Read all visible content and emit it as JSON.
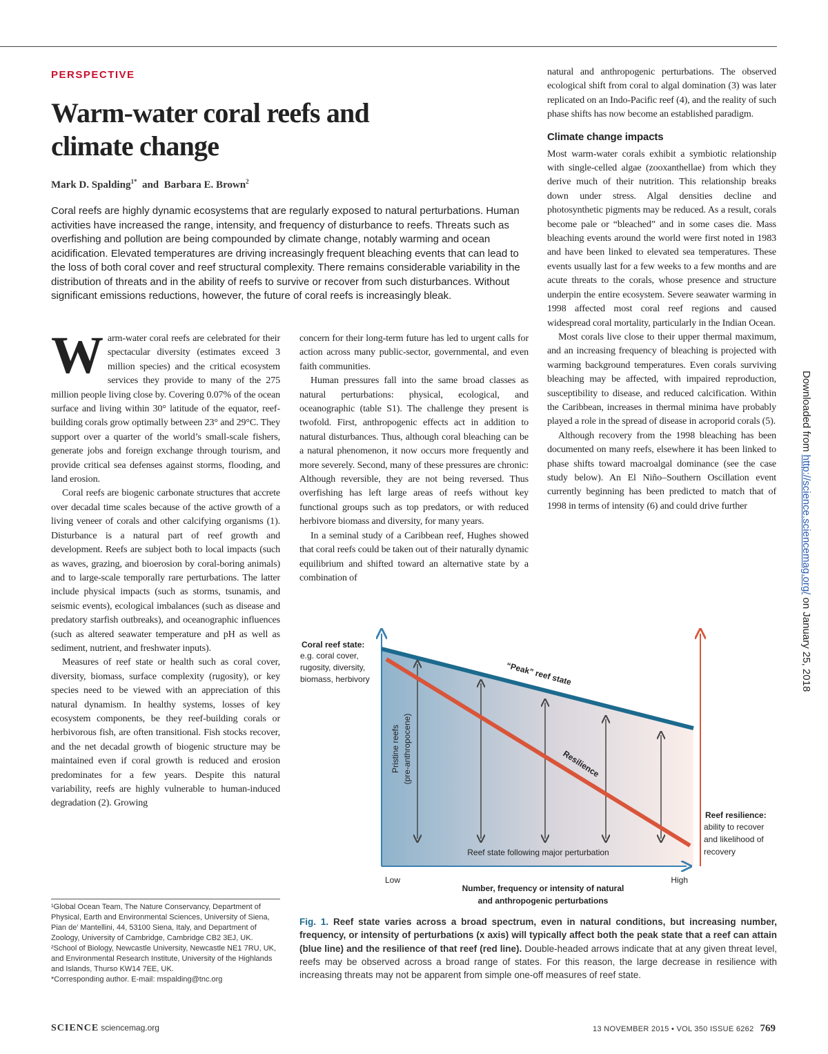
{
  "header": {
    "section": "PERSPECTIVE",
    "title": "Warm-water coral reefs and climate change",
    "authors": [
      {
        "name": "Mark D. Spalding",
        "affil": "1*"
      },
      {
        "name": "Barbara E. Brown",
        "affil": "2"
      }
    ],
    "author_joiner": "and"
  },
  "abstract": "Coral reefs are highly dynamic ecosystems that are regularly exposed to natural perturbations. Human activities have increased the range, intensity, and frequency of disturbance to reefs. Threats such as overfishing and pollution are being compounded by climate change, notably warming and ocean acidification. Elevated temperatures are driving increasingly frequent bleaching events that can lead to the loss of both coral cover and reef structural complexity. There remains considerable variability in the distribution of threats and in the ability of reefs to survive or recover from such disturbances. Without significant emissions reductions, however, the future of coral reefs is increasingly bleak.",
  "body": {
    "drop_cap": "W",
    "column1": [
      "arm-water coral reefs are celebrated for their spectacular diversity (estimates exceed 3 million species) and the critical ecosystem services they provide to many of the 275 million people living close by. Covering 0.07% of the ocean surface and living within 30° latitude of the equator, reef-building corals grow optimally between 23° and 29°C. They support over a quarter of the world’s small-scale fishers, generate jobs and foreign exchange through tourism, and provide critical sea defenses against storms, flooding, and land erosion.",
      "Coral reefs are biogenic carbonate structures that accrete over decadal time scales because of the active growth of a living veneer of corals and other calcifying organisms (1). Disturbance is a natural part of reef growth and development. Reefs are subject both to local impacts (such as waves, grazing, and bioerosion by coral-boring animals) and to large-scale temporally rare perturbations. The latter include physical impacts (such as storms, tsunamis, and seismic events), ecological imbalances (such as disease and predatory starfish outbreaks), and oceanographic influences (such as altered seawater temperature and pH as well as sediment, nutrient, and freshwater inputs).",
      "Measures of reef state or health such as coral cover, diversity, biomass, surface complexity (rugosity), or key species need to be viewed with an appreciation of this natural dynamism. In healthy systems, losses of key ecosystem components, be they reef-building corals or herbivorous fish, are often transitional. Fish stocks recover, and the net decadal growth of biogenic structure may be maintained even if coral growth is reduced and erosion predominates for a few years. Despite this natural variability, reefs are highly vulnerable to human-induced degradation (2). Growing"
    ],
    "column2": [
      "concern for their long-term future has led to urgent calls for action across many public-sector, governmental, and even faith communities.",
      "Human pressures fall into the same broad classes as natural perturbations: physical, ecological, and oceanographic (table S1). The challenge they present is twofold. First, anthropogenic effects act in addition to natural disturbances. Thus, although coral bleaching can be a natural phenomenon, it now occurs more frequently and more severely. Second, many of these pressures are chronic: Although reversible, they are not being reversed. Thus overfishing has left large areas of reefs without key functional groups such as top predators, or with reduced herbivore biomass and diversity, for many years.",
      "In a seminal study of a Caribbean reef, Hughes showed that coral reefs could be taken out of their naturally dynamic equilibrium and shifted toward an alternative state by a combination of"
    ],
    "column3_top": [
      "natural and anthropogenic perturbations. The observed ecological shift from coral to algal domination (3) was later replicated on an Indo-Pacific reef (4), and the reality of such phase shifts has now become an established paradigm."
    ],
    "column3_heading": "Climate change impacts",
    "column3": [
      "Most warm-water corals exhibit a symbiotic relationship with single-celled algae (zooxanthellae) from which they derive much of their nutrition. This relationship breaks down under stress. Algal densities decline and photosynthetic pigments may be reduced. As a result, corals become pale or “bleached” and in some cases die. Mass bleaching events around the world were first noted in 1983 and have been linked to elevated sea temperatures. These events usually last for a few weeks to a few months and are acute threats to the corals, whose presence and structure underpin the entire ecosystem. Severe seawater warming in 1998 affected most coral reef regions and caused widespread coral mortality, particularly in the Indian Ocean.",
      "Most corals live close to their upper thermal maximum, and an increasing frequency of bleaching is projected with warming background temperatures. Even corals surviving bleaching may be affected, with impaired reproduction, susceptibility to disease, and reduced calcification. Within the Caribbean, increases in thermal minima have probably played a role in the spread of disease in acroporid corals (5).",
      "Although recovery from the 1998 bleaching has been documented on many reefs, elsewhere it has been linked to phase shifts toward macroalgal dominance (see the case study below). An El Niño–Southern Oscillation event currently beginning has been predicted to match that of 1998 in terms of intensity (6) and could drive further"
    ]
  },
  "figure": {
    "y_axis_title": "Coral reef state:",
    "y_axis_note": "e.g. coral cover, rugosity, diversity, biomass, herbivory",
    "peak_label": "“Peak” reef state",
    "resilience_label": "Resilience",
    "pristine_label": [
      "Pristine reefs",
      "(pre-anthropocene)"
    ],
    "perturbation_label": "Reef state following major perturbation",
    "x_low": "Low",
    "x_high": "High",
    "x_axis_title": [
      "Number, frequency or intensity of natural",
      "and anthropogenic perturbations"
    ],
    "resilience_title": "Reef resilience:",
    "resilience_note": "ability to recover and likelihood of recovery"
  },
  "caption": {
    "label": "Fig. 1.",
    "bold": "Reef state varies across a broad spectrum, even in natural conditions, but increasing number, frequency, or intensity of perturbations (x axis) will typically affect both the peak state that a reef can attain (blue line) and the resilience of that reef (red line).",
    "text": "Double-headed arrows indicate that at any given threat level, reefs may be observed across a broad range of states. For this reason, the large decrease in resilience with increasing threats may not be apparent from simple one-off measures of reef state."
  },
  "footnotes": {
    "affiliations": "¹Global Ocean Team, The Nature Conservancy, Department of Physical, Earth and Environmental Sciences, University of Siena, Pian de’ Mantellini, 44, 53100 Siena, Italy, and Department of Zoology, University of Cambridge, Cambridge CB2 3EJ, UK. ²School of Biology, Newcastle University, Newcastle NE1 7RU, UK, and Environmental Research Institute, University of the Highlands and Islands, Thurso KW14 7EE, UK.",
    "corresponding": "*Corresponding author. E-mail: mspalding@tnc.org"
  },
  "footer": {
    "journal": "SCIENCE",
    "site": "sciencemag.org",
    "issue": "13 NOVEMBER 2015 • VOL 350 ISSUE 6262",
    "page": "769"
  },
  "download_note": {
    "prefix": "Downloaded from",
    "link": "http://science.sciencemag.org/",
    "suffix": "on January 25, 2018"
  }
}
